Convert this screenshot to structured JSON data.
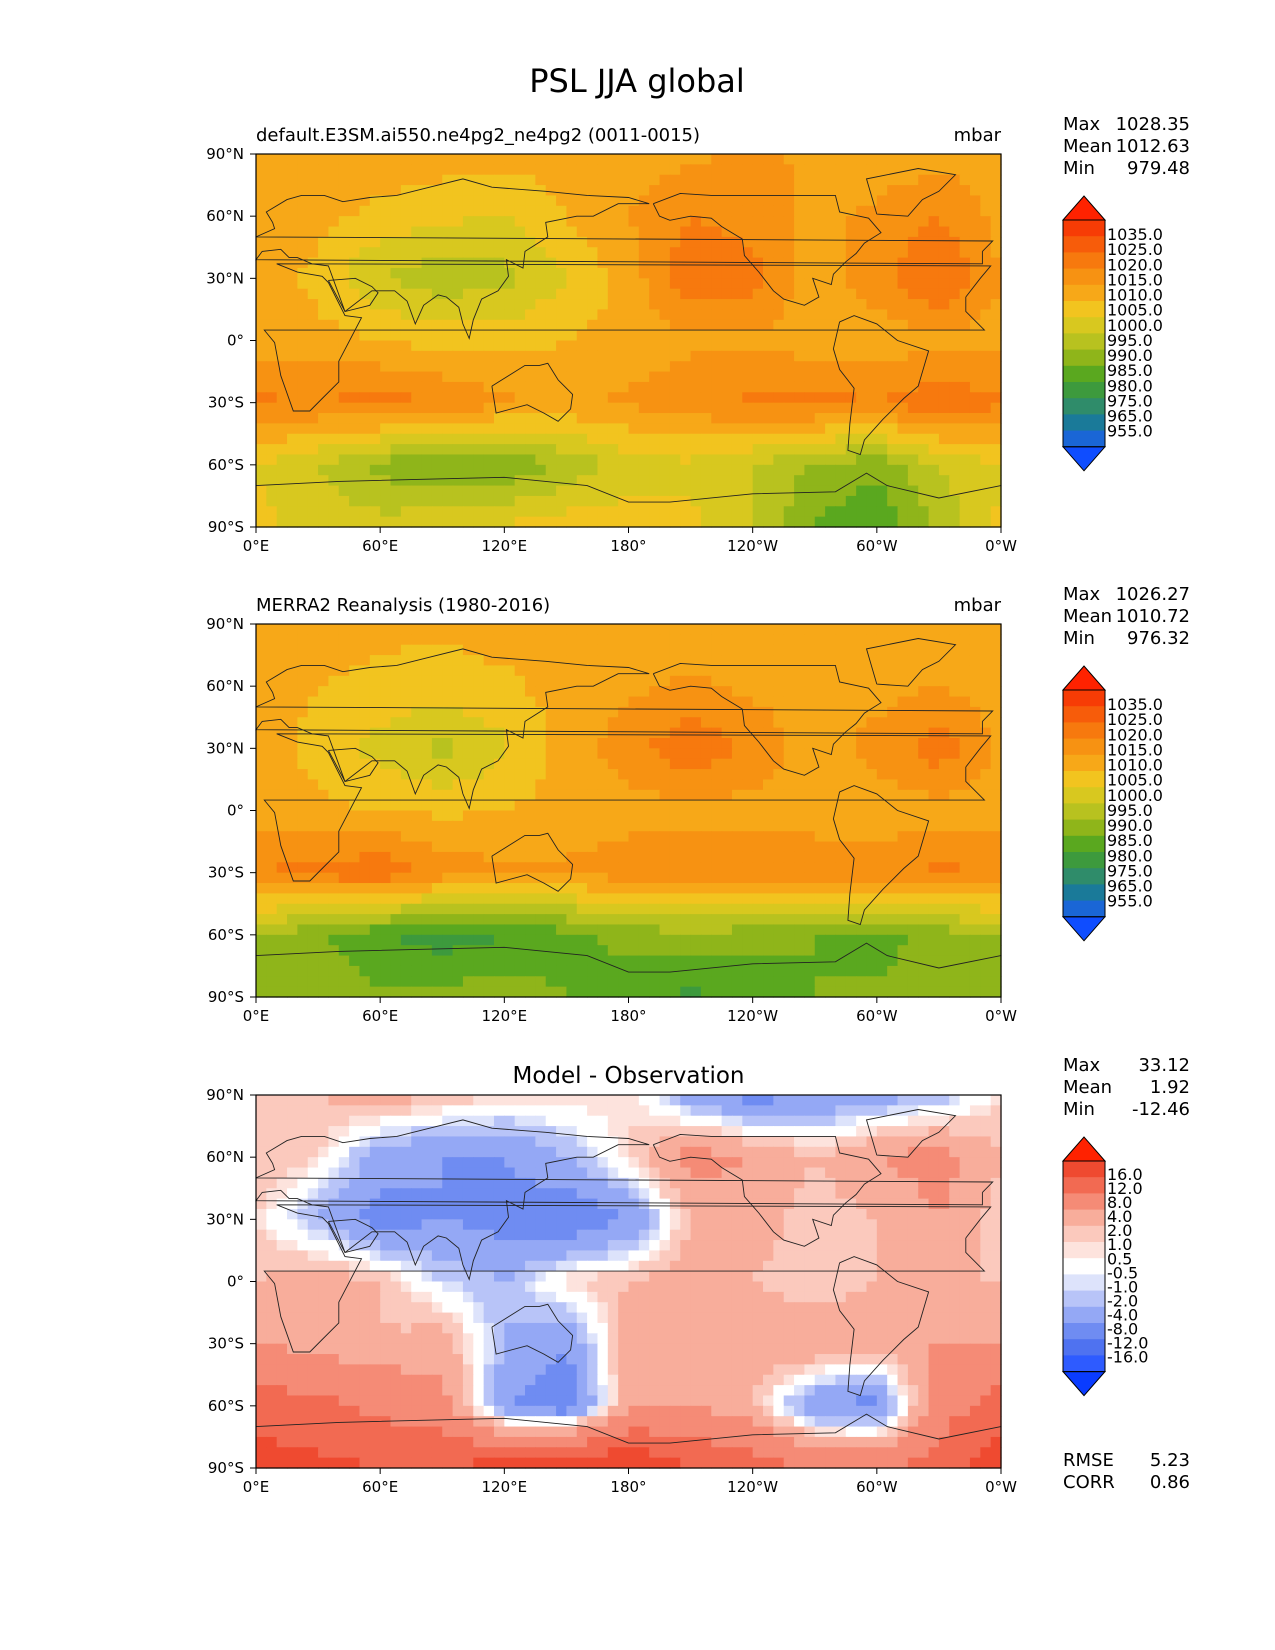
{
  "title": "PSL JJA global",
  "lon_ticks": [
    "0°E",
    "60°E",
    "120°E",
    "180°",
    "120°W",
    "60°W",
    "0°W"
  ],
  "lat_ticks": [
    "90°N",
    "60°N",
    "30°N",
    "0°",
    "30°S",
    "60°S",
    "90°S"
  ],
  "stat_labels": {
    "max": "Max",
    "mean": "Mean",
    "min": "Min",
    "rmse": "RMSE",
    "corr": "CORR"
  },
  "colors": {
    "field": [
      "#0f4dff",
      "#1a66d6",
      "#1a7a99",
      "#2f8c6a",
      "#3d9a3d",
      "#5aa81f",
      "#8fb51a",
      "#b8c21f",
      "#d8c81f",
      "#f2c41f",
      "#f7a818",
      "#f79212",
      "#f7790e",
      "#f75c0a",
      "#f73c05",
      "#ff2200"
    ],
    "diff": [
      "#0a3cff",
      "#2e5bff",
      "#4f72f0",
      "#6f8cf2",
      "#94a8f5",
      "#b8c4f8",
      "#dde3fb",
      "#ffffff",
      "#fde3dd",
      "#fbc9bd",
      "#f8ad9b",
      "#f58b76",
      "#f26a52",
      "#ef4a30",
      "#ff2200"
    ]
  },
  "chart_data": [
    {
      "type": "heatmap",
      "subtitle_left": "default.E3SM.ai550.ne4pg2_ne4pg2 (0011-0015)",
      "units": "mbar",
      "stats": {
        "max": "1028.35",
        "mean": "1012.63",
        "min": "979.48"
      },
      "colorbar_levels": [
        "1035.0",
        "1025.0",
        "1020.0",
        "1015.0",
        "1010.0",
        "1005.0",
        "1000.0",
        "995.0",
        "990.0",
        "985.0",
        "980.0",
        "975.0",
        "965.0",
        "955.0"
      ],
      "x": [
        0,
        30,
        60,
        90,
        120,
        150,
        180,
        210,
        240,
        270,
        300,
        330,
        360
      ],
      "y": [
        90,
        60,
        30,
        0,
        -30,
        -60,
        -90
      ],
      "z": [
        [
          1012,
          1014,
          1014,
          1013,
          1012,
          1012,
          1012,
          1014,
          1016,
          1014,
          1012,
          1013,
          1012
        ],
        [
          1013,
          1012,
          1008,
          1006,
          1005,
          1010,
          1015,
          1020,
          1018,
          1014,
          1016,
          1020,
          1013
        ],
        [
          1015,
          1008,
          1000,
          997,
          998,
          1005,
          1012,
          1024,
          1022,
          1012,
          1018,
          1026,
          1015
        ],
        [
          1013,
          1012,
          1010,
          1008,
          1008,
          1010,
          1012,
          1014,
          1014,
          1012,
          1012,
          1013,
          1013
        ],
        [
          1021,
          1020,
          1022,
          1020,
          1016,
          1014,
          1016,
          1018,
          1021,
          1022,
          1020,
          1024,
          1021
        ],
        [
          1005,
          1000,
          993,
          990,
          990,
          996,
          1002,
          1004,
          1000,
          994,
          992,
          1000,
          1005
        ],
        [
          1006,
          1004,
          1002,
          1004,
          1006,
          1008,
          1008,
          1006,
          1000,
          990,
          985,
          996,
          1006
        ]
      ]
    },
    {
      "type": "heatmap",
      "subtitle_left": "MERRA2 Reanalysis (1980-2016)",
      "units": "mbar",
      "stats": {
        "max": "1026.27",
        "mean": "1010.72",
        "min": "976.32"
      },
      "colorbar_levels": [
        "1035.0",
        "1025.0",
        "1020.0",
        "1015.0",
        "1010.0",
        "1005.0",
        "1000.0",
        "995.0",
        "990.0",
        "985.0",
        "980.0",
        "975.0",
        "965.0",
        "955.0"
      ],
      "x": [
        0,
        30,
        60,
        90,
        120,
        150,
        180,
        210,
        240,
        270,
        300,
        330,
        360
      ],
      "y": [
        90,
        60,
        30,
        0,
        -30,
        -60,
        -90
      ],
      "z": [
        [
          1012,
          1012,
          1011,
          1011,
          1012,
          1012,
          1012,
          1012,
          1012,
          1012,
          1012,
          1012,
          1012
        ],
        [
          1012,
          1010,
          1009,
          1008,
          1009,
          1012,
          1014,
          1016,
          1014,
          1012,
          1013,
          1015,
          1012
        ],
        [
          1014,
          1008,
          1003,
          998,
          1004,
          1012,
          1018,
          1024,
          1019,
          1012,
          1017,
          1023,
          1014
        ],
        [
          1012,
          1011,
          1010,
          1009,
          1010,
          1012,
          1013,
          1013,
          1013,
          1012,
          1012,
          1013,
          1012
        ],
        [
          1020,
          1022,
          1024,
          1018,
          1016,
          1016,
          1018,
          1018,
          1020,
          1019,
          1018,
          1021,
          1020
        ],
        [
          995,
          991,
          986,
          982,
          985,
          988,
          992,
          994,
          992,
          990,
          988,
          992,
          995
        ],
        [
          993,
          992,
          991,
          992,
          993,
          990,
          986,
          984,
          986,
          990,
          991,
          992,
          993
        ]
      ]
    },
    {
      "type": "heatmap",
      "title": "Model - Observation",
      "stats": {
        "max": "33.12",
        "mean": "1.92",
        "min": "-12.46",
        "rmse": "5.23",
        "corr": "0.86"
      },
      "colorbar_levels": [
        "16.0",
        "12.0",
        "8.0",
        "4.0",
        "2.0",
        "1.0",
        "0.5",
        "-0.5",
        "-1.0",
        "-2.0",
        "-4.0",
        "-8.0",
        "-12.0",
        "-16.0"
      ],
      "x": [
        0,
        30,
        60,
        90,
        120,
        150,
        180,
        210,
        240,
        270,
        300,
        330,
        360
      ],
      "y": [
        90,
        60,
        30,
        0,
        -30,
        -60,
        -90
      ],
      "z": [
        [
          1,
          2,
          3,
          2,
          1,
          1,
          1,
          -3,
          -5,
          -4,
          -3,
          -2,
          1
        ],
        [
          2,
          1,
          -3,
          -4,
          -4,
          -2,
          1,
          5,
          4,
          2,
          4,
          5,
          2
        ],
        [
          1,
          -2,
          -5,
          -4,
          -5,
          -6,
          -4,
          2,
          3,
          1,
          2,
          4,
          1
        ],
        [
          2,
          3,
          2,
          -1,
          -2,
          1,
          2,
          3,
          2,
          1,
          2,
          2,
          2
        ],
        [
          4,
          3,
          2,
          3,
          -2,
          -4,
          3,
          4,
          3,
          4,
          3,
          4,
          4
        ],
        [
          10,
          9,
          7,
          5,
          -4,
          -6,
          3,
          4,
          2,
          -4,
          -5,
          6,
          10
        ],
        [
          14,
          13,
          12,
          12,
          14,
          16,
          16,
          12,
          10,
          8,
          7,
          10,
          14
        ]
      ]
    }
  ]
}
